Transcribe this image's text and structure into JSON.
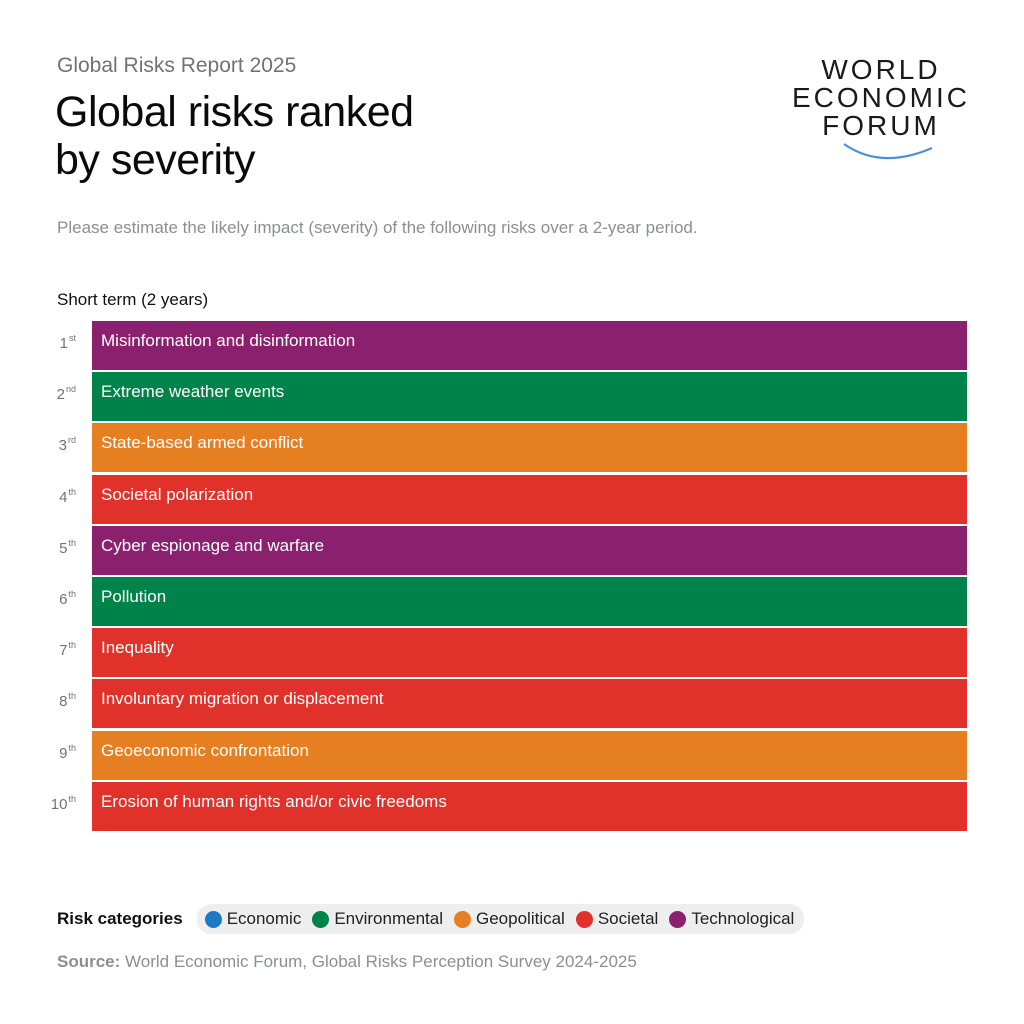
{
  "header": {
    "report_label": "Global Risks Report 2025",
    "title_line1": "Global risks ranked",
    "title_line2": "by severity"
  },
  "logo": {
    "line1": "WORLD",
    "line2": "ECONOMIC",
    "line3": "FORUM",
    "arc_color": "#4a90d9"
  },
  "question": "Please estimate the likely impact (severity) of the following risks over a 2-year period.",
  "chart_heading": "Short term (2 years)",
  "chart_data": {
    "type": "table",
    "title": "Global risks ranked by severity",
    "subtitle": "Short term (2 years)",
    "columns": [
      "Rank",
      "Risk",
      "Category"
    ],
    "rows": [
      {
        "rank": "1",
        "suffix": "st",
        "risk": "Misinformation and disinformation",
        "category": "Technological"
      },
      {
        "rank": "2",
        "suffix": "nd",
        "risk": "Extreme weather events",
        "category": "Environmental"
      },
      {
        "rank": "3",
        "suffix": "rd",
        "risk": "State-based armed conflict",
        "category": "Geopolitical"
      },
      {
        "rank": "4",
        "suffix": "th",
        "risk": "Societal polarization",
        "category": "Societal"
      },
      {
        "rank": "5",
        "suffix": "th",
        "risk": "Cyber espionage and warfare",
        "category": "Technological"
      },
      {
        "rank": "6",
        "suffix": "th",
        "risk": "Pollution",
        "category": "Environmental"
      },
      {
        "rank": "7",
        "suffix": "th",
        "risk": "Inequality",
        "category": "Societal"
      },
      {
        "rank": "8",
        "suffix": "th",
        "risk": "Involuntary migration or displacement",
        "category": "Societal"
      },
      {
        "rank": "9",
        "suffix": "th",
        "risk": "Geoeconomic confrontation",
        "category": "Geopolitical"
      },
      {
        "rank": "10",
        "suffix": "th",
        "risk": "Erosion of human rights and/or civic freedoms",
        "category": "Societal"
      }
    ]
  },
  "legend": {
    "title": "Risk categories",
    "items": [
      {
        "label": "Economic",
        "color": "#1f7ac4"
      },
      {
        "label": "Environmental",
        "color": "#00834a"
      },
      {
        "label": "Geopolitical",
        "color": "#e67e22"
      },
      {
        "label": "Societal",
        "color": "#e0312b"
      },
      {
        "label": "Technological",
        "color": "#8b206e"
      }
    ]
  },
  "source": {
    "label": "Source:",
    "text": " World Economic Forum, Global Risks Perception Survey 2024-2025"
  }
}
